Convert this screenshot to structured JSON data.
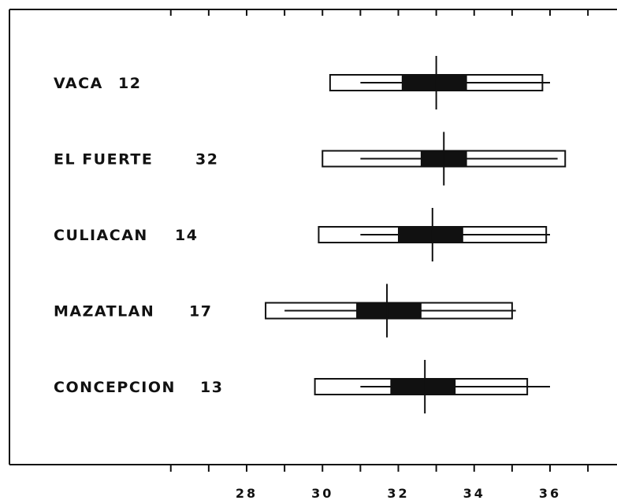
{
  "chart_data": {
    "type": "box",
    "title": "",
    "xlabel": "",
    "ylabel": "",
    "xlim": [
      25,
      38
    ],
    "x_ticks": [
      28,
      30,
      32,
      34,
      36
    ],
    "x_tick_labels": [
      "28",
      "30",
      "32",
      "34",
      "36"
    ],
    "grid": false,
    "legend": "none",
    "rows": [
      {
        "name": "VACA",
        "n": "12",
        "range_min": 31.0,
        "range_max": 36.0,
        "box_min": 30.2,
        "box_max": 35.8,
        "inner_min": 32.1,
        "inner_max": 33.8,
        "mean": 33.0
      },
      {
        "name": "EL FUERTE",
        "n": "32",
        "range_min": 31.0,
        "range_max": 36.2,
        "box_min": 30.0,
        "box_max": 36.4,
        "inner_min": 32.6,
        "inner_max": 33.8,
        "mean": 33.2
      },
      {
        "name": "CULIACAN",
        "n": "14",
        "range_min": 31.0,
        "range_max": 36.0,
        "box_min": 29.9,
        "box_max": 35.9,
        "inner_min": 32.0,
        "inner_max": 33.7,
        "mean": 32.9
      },
      {
        "name": "MAZATLAN",
        "n": "17",
        "range_min": 29.0,
        "range_max": 35.1,
        "box_min": 28.5,
        "box_max": 35.0,
        "inner_min": 30.9,
        "inner_max": 32.6,
        "mean": 31.7
      },
      {
        "name": "CONCEPCION",
        "n": "13",
        "range_min": 31.0,
        "range_max": 36.0,
        "box_min": 29.8,
        "box_max": 35.4,
        "inner_min": 31.8,
        "inner_max": 33.5,
        "mean": 32.7
      }
    ]
  }
}
